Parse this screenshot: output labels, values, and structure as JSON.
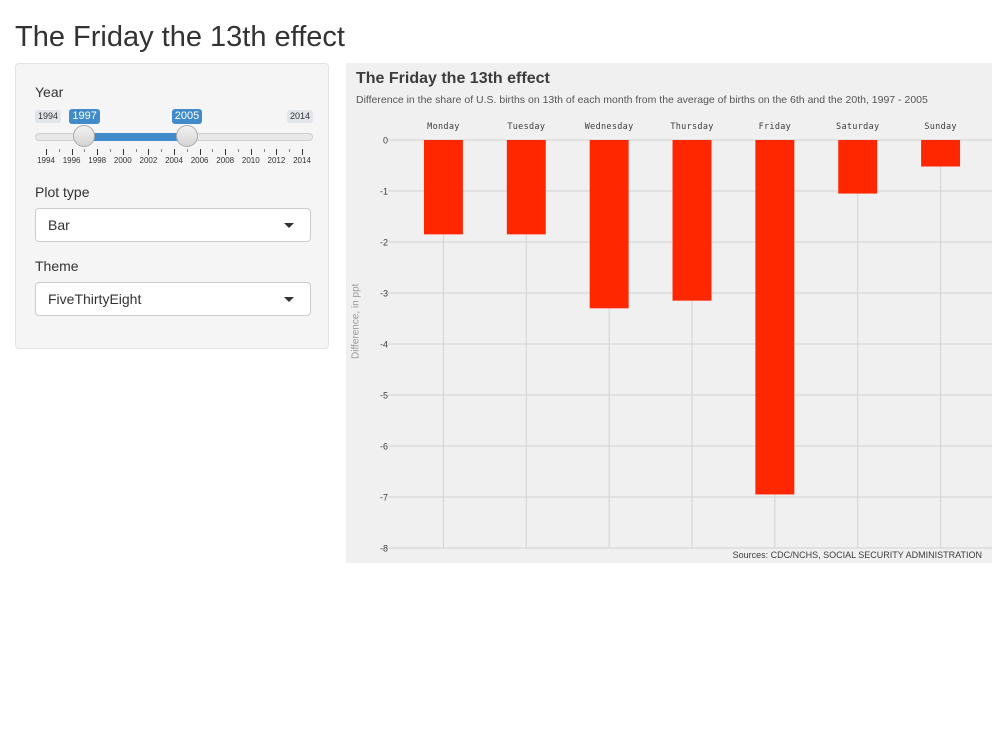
{
  "app": {
    "title": "The Friday the 13th effect"
  },
  "sidebar": {
    "year": {
      "label": "Year",
      "min": 1994,
      "max": 2014,
      "from": 1997,
      "to": 2005,
      "min_label": "1994",
      "max_label": "2014",
      "from_label": "1997",
      "to_label": "2005",
      "tick_labels": [
        "1994",
        "1996",
        "1998",
        "2000",
        "2002",
        "2004",
        "2006",
        "2008",
        "2010",
        "2012",
        "2014"
      ]
    },
    "plot_type": {
      "label": "Plot type",
      "value": "Bar"
    },
    "theme": {
      "label": "Theme",
      "value": "FiveThirtyEight"
    }
  },
  "colors": {
    "bar": "#ff2700",
    "accent": "#428bca",
    "panel_bg": "#f0f0f0"
  },
  "icons": {
    "dropdown": "chevron-down-icon"
  },
  "chart_data": {
    "type": "bar",
    "title": "The Friday the 13th effect",
    "subtitle": "Difference in the share of U.S. births on 13th of each month from the average of births on the 6th and the 20th, 1997 - 2005",
    "caption": "Sources: CDC/NCHS, SOCIAL SECURITY ADMINISTRATION",
    "categories": [
      "Monday",
      "Tuesday",
      "Wednesday",
      "Thursday",
      "Friday",
      "Saturday",
      "Sunday"
    ],
    "values": [
      -1.85,
      -1.85,
      -3.3,
      -3.15,
      -6.95,
      -1.05,
      -0.52
    ],
    "xlabel": "",
    "ylabel": "Difference, in ppt",
    "ylim": [
      -8,
      0
    ],
    "y_ticks": [
      0,
      -1,
      -2,
      -3,
      -4,
      -5,
      -6,
      -7,
      -8
    ],
    "x_axis_position": "top",
    "grid": true
  }
}
